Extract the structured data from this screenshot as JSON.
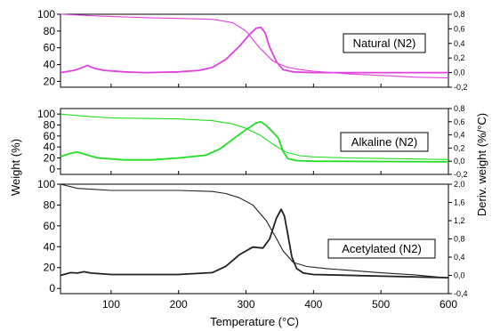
{
  "figure": {
    "ylabel_left": "Weight (%)",
    "ylabel_right": "Deriv. weight (%/°C)",
    "xlabel": "Temperature (°C)",
    "x_ticks": [
      100,
      200,
      300,
      400,
      500,
      600
    ],
    "xlim": [
      25,
      600
    ]
  },
  "chart_data": [
    {
      "type": "line",
      "label": "Natural (N2)",
      "color": "#e040e0",
      "ylim_left": [
        13,
        100
      ],
      "ylim_right": [
        -0.2,
        0.8
      ],
      "left_ticks": [
        100,
        80,
        60,
        40,
        20
      ],
      "right_ticks": [
        "0,8",
        "0,6",
        "0,4",
        "0,2",
        "0,0",
        "-0,2"
      ],
      "right_tick_values": [
        0.8,
        0.6,
        0.4,
        0.2,
        0.0,
        -0.2
      ],
      "series": [
        {
          "name": "Weight",
          "axis": "left",
          "points": [
            [
              25,
              100
            ],
            [
              80,
              98
            ],
            [
              150,
              96
            ],
            [
              200,
              95
            ],
            [
              250,
              94
            ],
            [
              280,
              90
            ],
            [
              300,
              80
            ],
            [
              320,
              60
            ],
            [
              340,
              44
            ],
            [
              360,
              37
            ],
            [
              380,
              34
            ],
            [
              400,
              32
            ],
            [
              450,
              29
            ],
            [
              500,
              27
            ],
            [
              550,
              25
            ],
            [
              600,
              24
            ]
          ]
        },
        {
          "name": "Deriv. weight",
          "axis": "right",
          "points": [
            [
              25,
              0.0
            ],
            [
              45,
              0.03
            ],
            [
              55,
              0.06
            ],
            [
              65,
              0.1
            ],
            [
              75,
              0.06
            ],
            [
              90,
              0.03
            ],
            [
              120,
              0.01
            ],
            [
              150,
              0.0
            ],
            [
              200,
              0.01
            ],
            [
              230,
              0.03
            ],
            [
              250,
              0.07
            ],
            [
              270,
              0.18
            ],
            [
              290,
              0.36
            ],
            [
              305,
              0.52
            ],
            [
              315,
              0.61
            ],
            [
              322,
              0.62
            ],
            [
              328,
              0.55
            ],
            [
              335,
              0.35
            ],
            [
              345,
              0.15
            ],
            [
              355,
              0.04
            ],
            [
              370,
              0.01
            ],
            [
              400,
              0.0
            ],
            [
              600,
              0.0
            ]
          ]
        }
      ]
    },
    {
      "type": "line",
      "label": "Alkaline (N2)",
      "color": "#22dd22",
      "ylim_left": [
        -10,
        110
      ],
      "ylim_right": [
        -0.2,
        0.8
      ],
      "left_ticks": [
        100,
        80,
        60,
        40,
        20,
        0
      ],
      "right_ticks": [
        "0,8",
        "0,6",
        "0,4",
        "0,2",
        "0,0",
        "-0,2"
      ],
      "right_tick_values": [
        0.8,
        0.6,
        0.4,
        0.2,
        0.0,
        -0.2
      ],
      "series": [
        {
          "name": "Weight",
          "axis": "left",
          "points": [
            [
              25,
              100
            ],
            [
              60,
              96
            ],
            [
              100,
              93
            ],
            [
              150,
              92
            ],
            [
              200,
              91
            ],
            [
              250,
              88
            ],
            [
              280,
              82
            ],
            [
              300,
              74
            ],
            [
              320,
              62
            ],
            [
              340,
              45
            ],
            [
              360,
              30
            ],
            [
              380,
              24
            ],
            [
              400,
              22
            ],
            [
              450,
              20
            ],
            [
              500,
              19
            ],
            [
              550,
              18
            ],
            [
              600,
              17
            ]
          ]
        },
        {
          "name": "Deriv. weight",
          "axis": "right",
          "points": [
            [
              25,
              0.07
            ],
            [
              40,
              0.12
            ],
            [
              50,
              0.14
            ],
            [
              60,
              0.11
            ],
            [
              80,
              0.05
            ],
            [
              120,
              0.02
            ],
            [
              160,
              0.02
            ],
            [
              200,
              0.05
            ],
            [
              240,
              0.09
            ],
            [
              260,
              0.18
            ],
            [
              280,
              0.33
            ],
            [
              300,
              0.48
            ],
            [
              315,
              0.58
            ],
            [
              322,
              0.6
            ],
            [
              330,
              0.54
            ],
            [
              340,
              0.44
            ],
            [
              348,
              0.35
            ],
            [
              355,
              0.15
            ],
            [
              362,
              0.04
            ],
            [
              375,
              0.01
            ],
            [
              400,
              0.0
            ],
            [
              600,
              -0.01
            ]
          ]
        }
      ]
    },
    {
      "type": "line",
      "label": "Acetylated (N2)",
      "color": "#222222",
      "ylim_left": [
        -5,
        100
      ],
      "ylim_right": [
        -0.4,
        2.0
      ],
      "left_ticks": [
        100,
        80,
        60,
        40,
        20,
        0
      ],
      "right_ticks": [
        "2,0",
        "1,6",
        "1,2",
        "0,8",
        "0,4",
        "0,0",
        "-0,4"
      ],
      "right_tick_values": [
        2.0,
        1.6,
        1.2,
        0.8,
        0.4,
        0.0,
        -0.4
      ],
      "series": [
        {
          "name": "Weight",
          "axis": "left",
          "points": [
            [
              25,
              100
            ],
            [
              50,
              96
            ],
            [
              100,
              94
            ],
            [
              150,
              94
            ],
            [
              200,
              94
            ],
            [
              250,
              93
            ],
            [
              270,
              91
            ],
            [
              290,
              87
            ],
            [
              310,
              80
            ],
            [
              330,
              65
            ],
            [
              345,
              48
            ],
            [
              355,
              36
            ],
            [
              370,
              25
            ],
            [
              390,
              21
            ],
            [
              420,
              19
            ],
            [
              460,
              17
            ],
            [
              500,
              15
            ],
            [
              550,
              13
            ],
            [
              600,
              10
            ]
          ]
        },
        {
          "name": "Deriv. weight",
          "axis": "right",
          "points": [
            [
              25,
              0.0
            ],
            [
              40,
              0.06
            ],
            [
              50,
              0.05
            ],
            [
              60,
              0.08
            ],
            [
              70,
              0.05
            ],
            [
              100,
              0.02
            ],
            [
              200,
              0.02
            ],
            [
              250,
              0.06
            ],
            [
              270,
              0.2
            ],
            [
              290,
              0.45
            ],
            [
              310,
              0.62
            ],
            [
              325,
              0.6
            ],
            [
              335,
              0.8
            ],
            [
              345,
              1.25
            ],
            [
              352,
              1.45
            ],
            [
              357,
              1.3
            ],
            [
              362,
              0.9
            ],
            [
              368,
              0.4
            ],
            [
              375,
              0.15
            ],
            [
              385,
              0.05
            ],
            [
              400,
              0.02
            ],
            [
              600,
              -0.05
            ]
          ]
        }
      ]
    }
  ]
}
